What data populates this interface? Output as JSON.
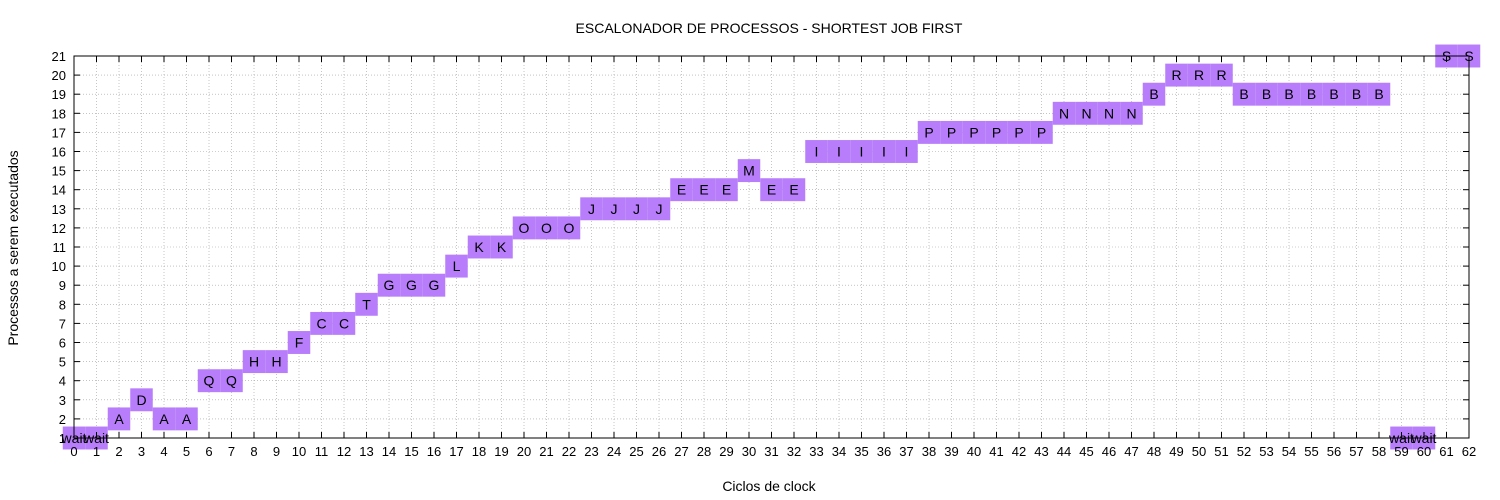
{
  "chart_data": {
    "type": "gantt",
    "title": "ESCALONADOR DE PROCESSOS - SHORTEST JOB FIRST",
    "xlabel": "Ciclos de clock",
    "ylabel": "Processos a serem executados",
    "xlim": [
      0,
      62
    ],
    "ylim": [
      1,
      21
    ],
    "xticks": [
      0,
      1,
      2,
      3,
      4,
      5,
      6,
      7,
      8,
      9,
      10,
      11,
      12,
      13,
      14,
      15,
      16,
      17,
      18,
      19,
      20,
      21,
      22,
      23,
      24,
      25,
      26,
      27,
      28,
      29,
      30,
      31,
      32,
      33,
      34,
      35,
      36,
      37,
      38,
      39,
      40,
      41,
      42,
      43,
      44,
      45,
      46,
      47,
      48,
      49,
      50,
      51,
      52,
      53,
      54,
      55,
      56,
      57,
      58,
      59,
      60,
      61,
      62
    ],
    "yticks": [
      1,
      2,
      3,
      4,
      5,
      6,
      7,
      8,
      9,
      10,
      11,
      12,
      13,
      14,
      15,
      16,
      17,
      18,
      19,
      20,
      21
    ],
    "grid": true,
    "bar_color": "#b77dfb",
    "points": [
      {
        "x": 0,
        "y": 1,
        "label": "wait"
      },
      {
        "x": 1,
        "y": 1,
        "label": "wait"
      },
      {
        "x": 2,
        "y": 2,
        "label": "A"
      },
      {
        "x": 3,
        "y": 3,
        "label": "D"
      },
      {
        "x": 4,
        "y": 2,
        "label": "A"
      },
      {
        "x": 5,
        "y": 2,
        "label": "A"
      },
      {
        "x": 6,
        "y": 4,
        "label": "Q"
      },
      {
        "x": 7,
        "y": 4,
        "label": "Q"
      },
      {
        "x": 8,
        "y": 5,
        "label": "H"
      },
      {
        "x": 9,
        "y": 5,
        "label": "H"
      },
      {
        "x": 10,
        "y": 6,
        "label": "F"
      },
      {
        "x": 11,
        "y": 7,
        "label": "C"
      },
      {
        "x": 12,
        "y": 7,
        "label": "C"
      },
      {
        "x": 13,
        "y": 8,
        "label": "T"
      },
      {
        "x": 14,
        "y": 9,
        "label": "G"
      },
      {
        "x": 15,
        "y": 9,
        "label": "G"
      },
      {
        "x": 16,
        "y": 9,
        "label": "G"
      },
      {
        "x": 17,
        "y": 10,
        "label": "L"
      },
      {
        "x": 18,
        "y": 11,
        "label": "K"
      },
      {
        "x": 19,
        "y": 11,
        "label": "K"
      },
      {
        "x": 20,
        "y": 12,
        "label": "O"
      },
      {
        "x": 21,
        "y": 12,
        "label": "O"
      },
      {
        "x": 22,
        "y": 12,
        "label": "O"
      },
      {
        "x": 23,
        "y": 13,
        "label": "J"
      },
      {
        "x": 24,
        "y": 13,
        "label": "J"
      },
      {
        "x": 25,
        "y": 13,
        "label": "J"
      },
      {
        "x": 26,
        "y": 13,
        "label": "J"
      },
      {
        "x": 27,
        "y": 14,
        "label": "E"
      },
      {
        "x": 28,
        "y": 14,
        "label": "E"
      },
      {
        "x": 29,
        "y": 14,
        "label": "E"
      },
      {
        "x": 30,
        "y": 15,
        "label": "M"
      },
      {
        "x": 31,
        "y": 14,
        "label": "E"
      },
      {
        "x": 32,
        "y": 14,
        "label": "E"
      },
      {
        "x": 33,
        "y": 16,
        "label": "I"
      },
      {
        "x": 34,
        "y": 16,
        "label": "I"
      },
      {
        "x": 35,
        "y": 16,
        "label": "I"
      },
      {
        "x": 36,
        "y": 16,
        "label": "I"
      },
      {
        "x": 37,
        "y": 16,
        "label": "I"
      },
      {
        "x": 38,
        "y": 17,
        "label": "P"
      },
      {
        "x": 39,
        "y": 17,
        "label": "P"
      },
      {
        "x": 40,
        "y": 17,
        "label": "P"
      },
      {
        "x": 41,
        "y": 17,
        "label": "P"
      },
      {
        "x": 42,
        "y": 17,
        "label": "P"
      },
      {
        "x": 43,
        "y": 17,
        "label": "P"
      },
      {
        "x": 44,
        "y": 18,
        "label": "N"
      },
      {
        "x": 45,
        "y": 18,
        "label": "N"
      },
      {
        "x": 46,
        "y": 18,
        "label": "N"
      },
      {
        "x": 47,
        "y": 18,
        "label": "N"
      },
      {
        "x": 48,
        "y": 19,
        "label": "B"
      },
      {
        "x": 49,
        "y": 20,
        "label": "R"
      },
      {
        "x": 50,
        "y": 20,
        "label": "R"
      },
      {
        "x": 51,
        "y": 20,
        "label": "R"
      },
      {
        "x": 52,
        "y": 19,
        "label": "B"
      },
      {
        "x": 53,
        "y": 19,
        "label": "B"
      },
      {
        "x": 54,
        "y": 19,
        "label": "B"
      },
      {
        "x": 55,
        "y": 19,
        "label": "B"
      },
      {
        "x": 56,
        "y": 19,
        "label": "B"
      },
      {
        "x": 57,
        "y": 19,
        "label": "B"
      },
      {
        "x": 58,
        "y": 19,
        "label": "B"
      },
      {
        "x": 59,
        "y": 1,
        "label": "wait"
      },
      {
        "x": 60,
        "y": 1,
        "label": "wait"
      },
      {
        "x": 61,
        "y": 21,
        "label": "S"
      },
      {
        "x": 62,
        "y": 21,
        "label": "S"
      }
    ]
  }
}
